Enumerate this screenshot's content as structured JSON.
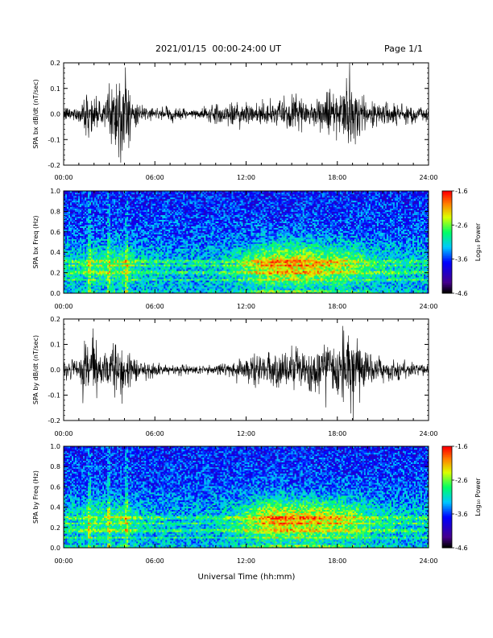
{
  "header": {
    "title": "2021/01/15  00:00-24:00 UT",
    "page": "Page 1/1"
  },
  "xaxis_label": "Universal Time (hh:mm)",
  "chart_data": [
    {
      "type": "line",
      "ylabel": "SPA bx dB/dt (nT/sec)",
      "xlim": [
        0,
        24
      ],
      "ylim": [
        -0.2,
        0.2
      ],
      "xticks": [
        "00:00",
        "06:00",
        "12:00",
        "18:00",
        "24:00"
      ],
      "yticks": [
        "-0.2",
        "-0.1",
        "0.0",
        "0.1",
        "0.2"
      ],
      "envelope": {
        "x": [
          0,
          1,
          1.5,
          2,
          2.5,
          3,
          3.5,
          4,
          4.5,
          5,
          6,
          7,
          8,
          9,
          10,
          11,
          12,
          13,
          14,
          15,
          16,
          17,
          18,
          18.5,
          19,
          19.5,
          20,
          21,
          22,
          23,
          24
        ],
        "amplitude": [
          0.03,
          0.03,
          0.1,
          0.06,
          0.04,
          0.12,
          0.18,
          0.2,
          0.06,
          0.03,
          0.02,
          0.03,
          0.02,
          0.02,
          0.04,
          0.05,
          0.05,
          0.04,
          0.05,
          0.06,
          0.05,
          0.08,
          0.1,
          0.13,
          0.15,
          0.1,
          0.05,
          0.05,
          0.04,
          0.04,
          0.03
        ]
      }
    },
    {
      "type": "heatmap",
      "ylabel": "SPA bx Freq (Hz)",
      "xlim": [
        0,
        24
      ],
      "ylim": [
        0.0,
        1.0
      ],
      "xticks": [
        "00:00",
        "06:00",
        "12:00",
        "18:00",
        "24:00"
      ],
      "yticks": [
        "0.0",
        "0.2",
        "0.4",
        "0.6",
        "0.8",
        "1.0"
      ],
      "colorbar": {
        "label": "Log₁₀ Power",
        "min": -4.6,
        "max": -1.6,
        "ticks": [
          "-1.6",
          "-2.6",
          "-3.6",
          "-4.6"
        ]
      },
      "activity": {
        "x": [
          0,
          1,
          2,
          3,
          4,
          5,
          6,
          8,
          10,
          11,
          12,
          13,
          14,
          15,
          16,
          17,
          18,
          19,
          20,
          21,
          22,
          24
        ],
        "intensity": [
          0.25,
          0.3,
          0.45,
          0.4,
          0.5,
          0.25,
          0.2,
          0.15,
          0.2,
          0.3,
          0.5,
          0.75,
          0.9,
          0.9,
          0.85,
          0.75,
          0.7,
          0.6,
          0.4,
          0.3,
          0.25,
          0.2
        ]
      },
      "bands_hz": [
        0.13,
        0.2,
        0.27,
        0.31
      ]
    },
    {
      "type": "line",
      "ylabel": "SPA by dB/dt (nT/sec)",
      "xlim": [
        0,
        24
      ],
      "ylim": [
        -0.2,
        0.2
      ],
      "xticks": [
        "00:00",
        "06:00",
        "12:00",
        "18:00",
        "24:00"
      ],
      "yticks": [
        "-0.2",
        "-0.1",
        "0.0",
        "0.1",
        "0.2"
      ],
      "envelope": {
        "x": [
          0,
          1,
          1.5,
          2,
          2.5,
          3,
          3.5,
          4,
          4.5,
          5,
          6,
          7,
          8,
          9,
          10,
          11,
          12,
          13,
          14,
          15,
          16,
          17,
          18,
          18.5,
          19,
          19.5,
          20,
          21,
          22,
          23,
          24
        ],
        "amplitude": [
          0.04,
          0.04,
          0.14,
          0.14,
          0.06,
          0.1,
          0.1,
          0.12,
          0.05,
          0.04,
          0.03,
          0.02,
          0.02,
          0.02,
          0.02,
          0.03,
          0.04,
          0.06,
          0.07,
          0.08,
          0.08,
          0.1,
          0.12,
          0.16,
          0.16,
          0.1,
          0.06,
          0.05,
          0.04,
          0.03,
          0.03
        ]
      }
    },
    {
      "type": "heatmap",
      "ylabel": "SPA by Freq (Hz)",
      "xlim": [
        0,
        24
      ],
      "ylim": [
        0.0,
        1.0
      ],
      "xticks": [
        "00:00",
        "06:00",
        "12:00",
        "18:00",
        "24:00"
      ],
      "yticks": [
        "0.0",
        "0.2",
        "0.4",
        "0.6",
        "0.8",
        "1.0"
      ],
      "colorbar": {
        "label": "Log₁₀ Power",
        "min": -4.6,
        "max": -1.6,
        "ticks": [
          "-1.6",
          "-2.6",
          "-3.6",
          "-4.6"
        ]
      },
      "activity": {
        "x": [
          0,
          1,
          2,
          3,
          4,
          5,
          6,
          8,
          10,
          11,
          12,
          13,
          14,
          15,
          16,
          17,
          18,
          19,
          20,
          21,
          22,
          24
        ],
        "intensity": [
          0.25,
          0.3,
          0.45,
          0.4,
          0.5,
          0.25,
          0.2,
          0.15,
          0.2,
          0.3,
          0.5,
          0.75,
          0.95,
          0.9,
          0.85,
          0.8,
          0.75,
          0.65,
          0.4,
          0.3,
          0.25,
          0.2
        ]
      },
      "bands_hz": [
        0.1,
        0.17,
        0.24,
        0.3
      ]
    }
  ]
}
